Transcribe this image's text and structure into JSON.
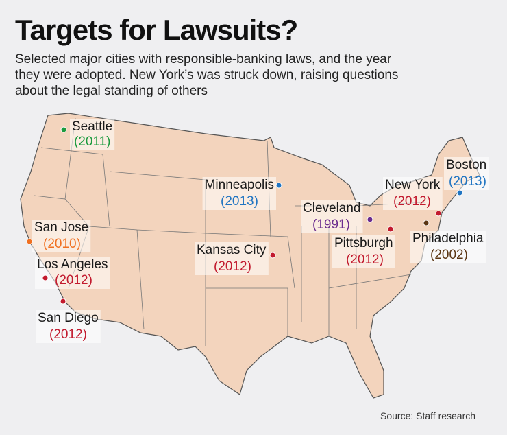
{
  "header": {
    "title": "Targets for Lawsuits?",
    "subtitle": [
      "Selected major cities with responsible-banking laws, and the year",
      "they were adopted. New York’s was struck down, raising questions",
      "about the legal standing of others"
    ]
  },
  "cities": [
    {
      "name": "Seattle",
      "year": "(2011)",
      "color": "#1b9a3e"
    },
    {
      "name": "Minneapolis",
      "year": "(2013)",
      "color": "#1f74c2"
    },
    {
      "name": "Boston",
      "year": "(2013)",
      "color": "#1f74c2"
    },
    {
      "name": "New York",
      "year": "(2012)",
      "color": "#c21a2e"
    },
    {
      "name": "Cleveland",
      "year": "(1991)",
      "color": "#6a2c8f"
    },
    {
      "name": "Pittsburgh",
      "year": "(2012)",
      "color": "#c21a2e"
    },
    {
      "name": "Philadelphia",
      "year": "(2002)",
      "color": "#5b3613"
    },
    {
      "name": "San Jose",
      "year": "(2010)",
      "color": "#f07021"
    },
    {
      "name": "Los Angeles",
      "year": "(2012)",
      "color": "#c21a2e"
    },
    {
      "name": "San Diego",
      "year": "(2012)",
      "color": "#c21a2e"
    },
    {
      "name": "Kansas City",
      "year": "(2012)",
      "color": "#c21a2e"
    }
  ],
  "source": "Source: Staff research"
}
